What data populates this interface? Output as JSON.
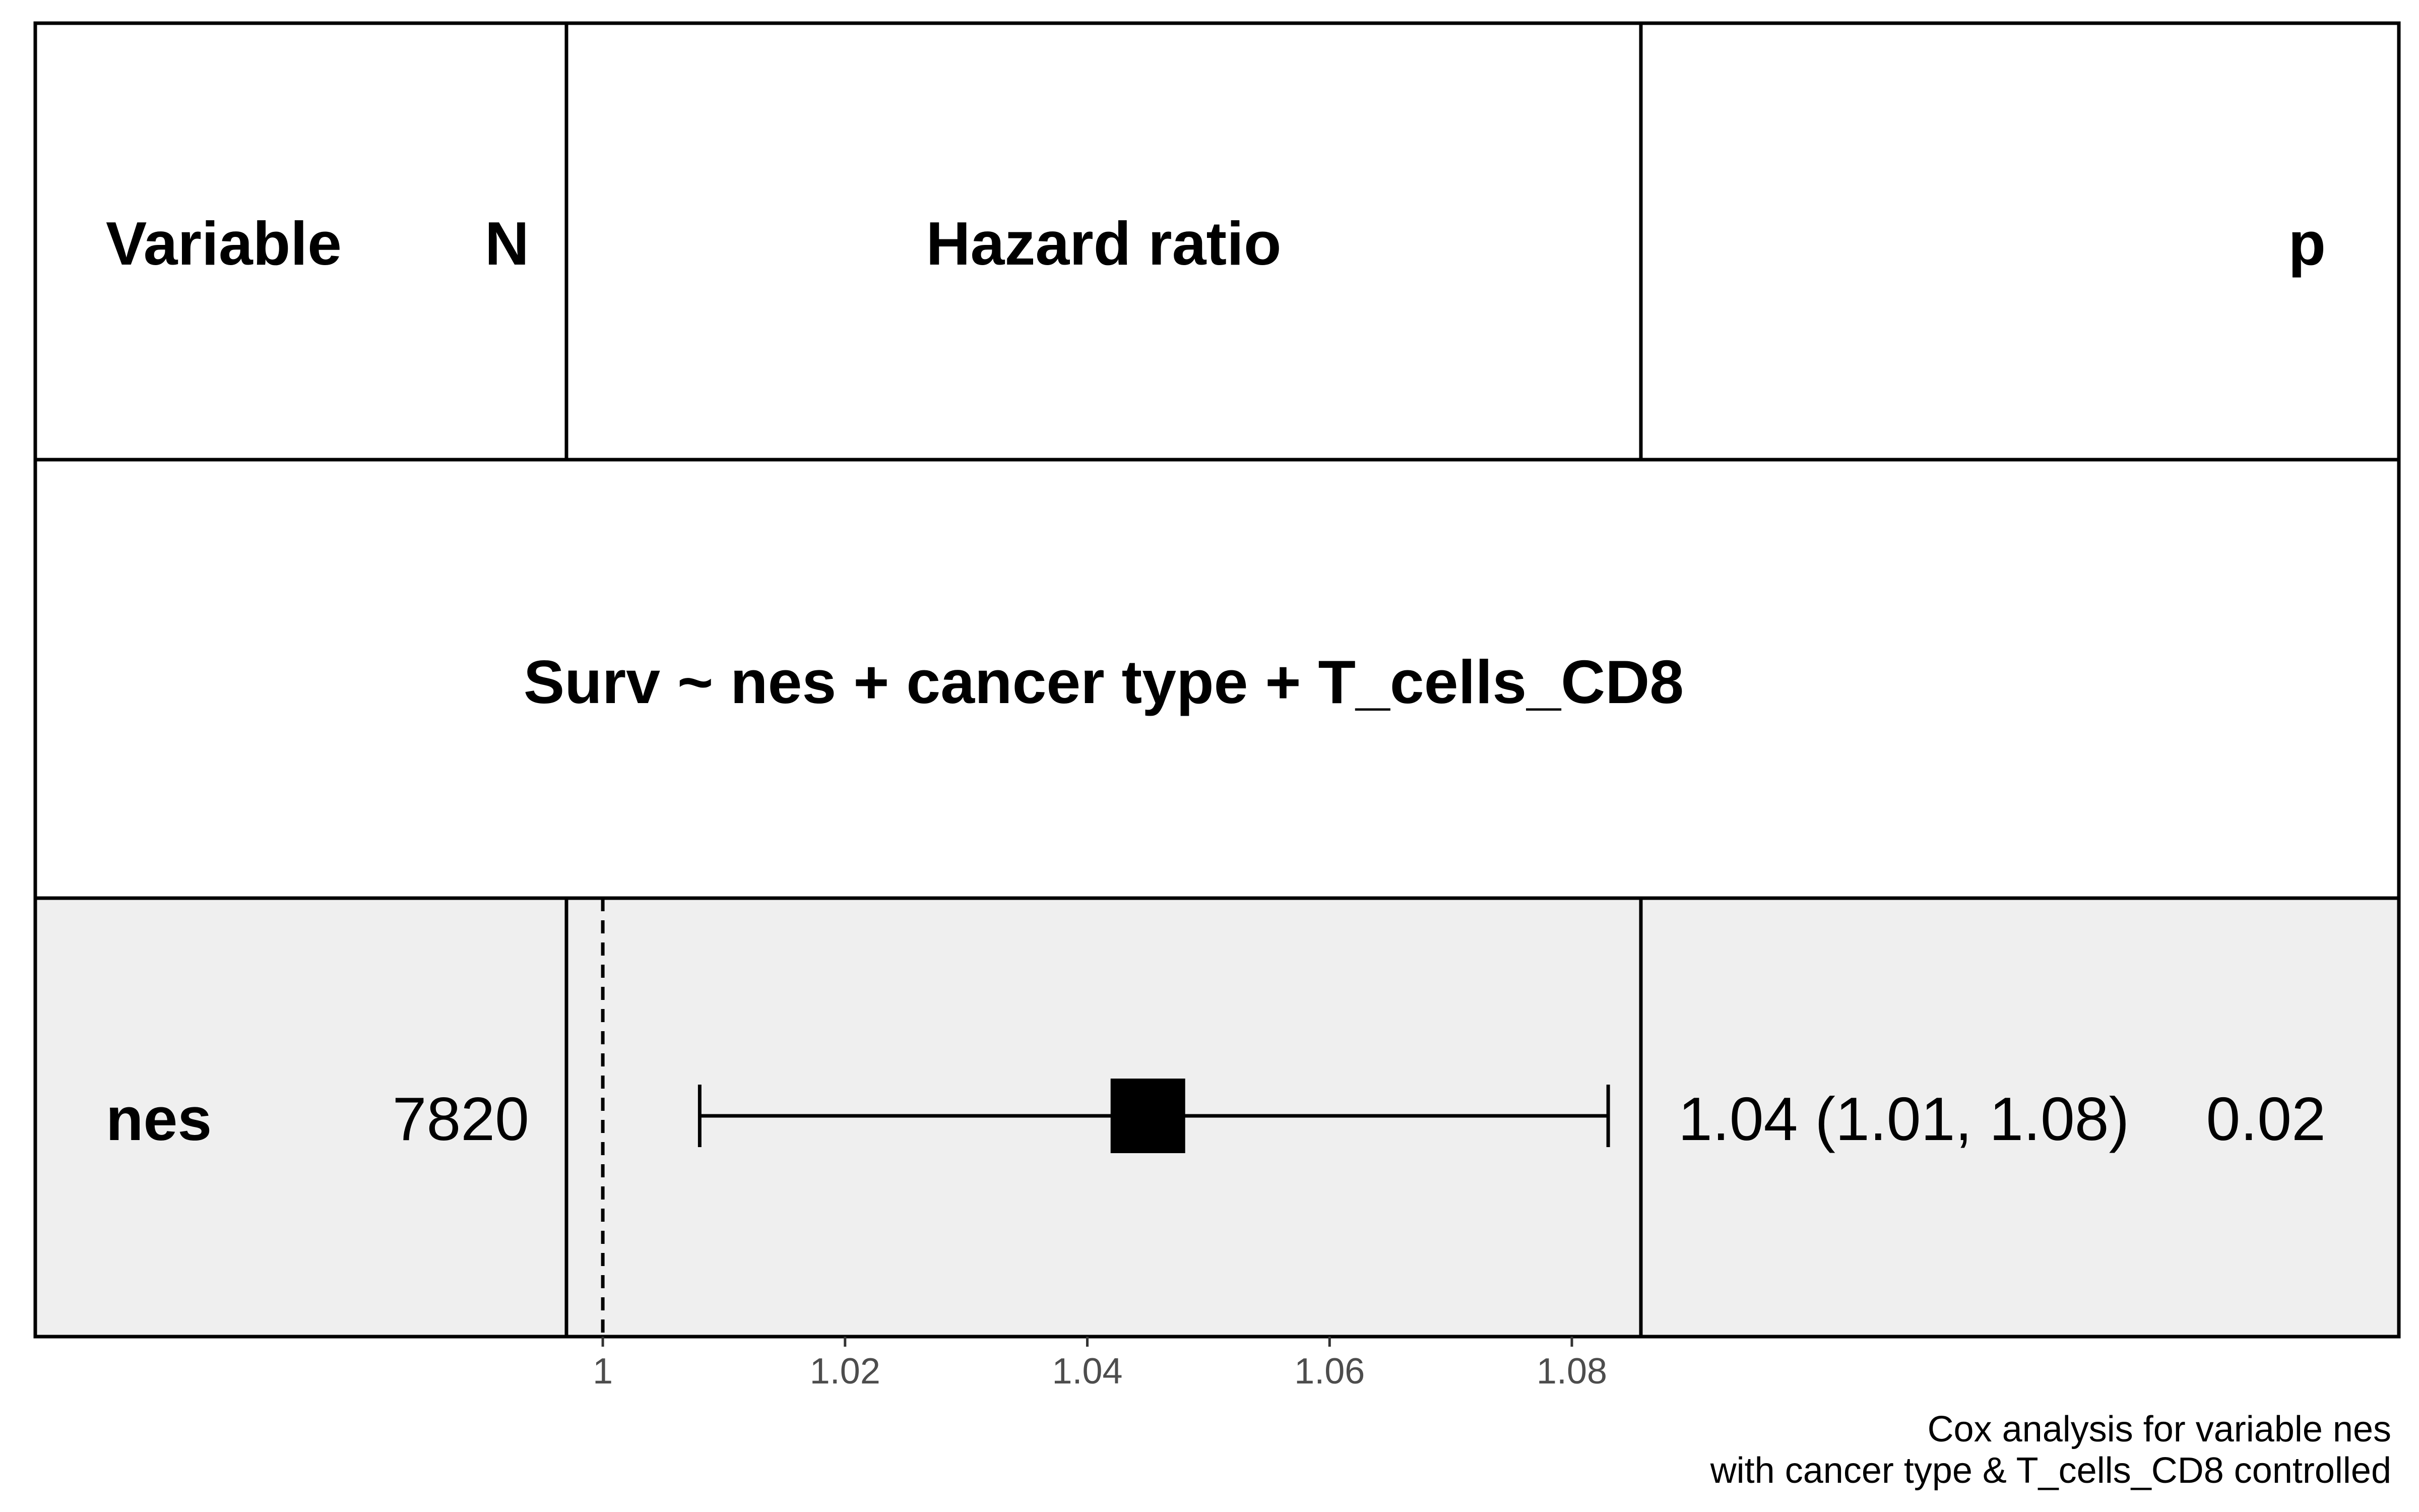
{
  "chart_data": {
    "type": "forest",
    "header": {
      "variable": "Variable",
      "n": "N",
      "hazard_ratio": "Hazard ratio",
      "p": "p"
    },
    "model_formula": "Surv ~ nes + cancer type + T_cells_CD8",
    "rows": [
      {
        "variable": "nes",
        "n": "7820",
        "hr": 1.045,
        "ci_low": 1.008,
        "ci_high": 1.083,
        "estimate_text": "1.04 (1.01, 1.08)",
        "p_text": "0.02"
      }
    ],
    "reference_line": 1,
    "x_ticks": [
      1,
      1.02,
      1.04,
      1.06,
      1.08
    ],
    "x_tick_labels": [
      "1",
      "1.02",
      "1.04",
      "1.06",
      "1.08"
    ],
    "xlim": [
      0.997,
      1.0857
    ],
    "caption_lines": [
      "Cox analysis for variable nes",
      "with cancer type & T_cells_CD8 controlled"
    ],
    "colors": {
      "row_shading": "#efefef",
      "border": "#000000",
      "point": "#000000",
      "tick_text": "#4d4d4d"
    }
  }
}
